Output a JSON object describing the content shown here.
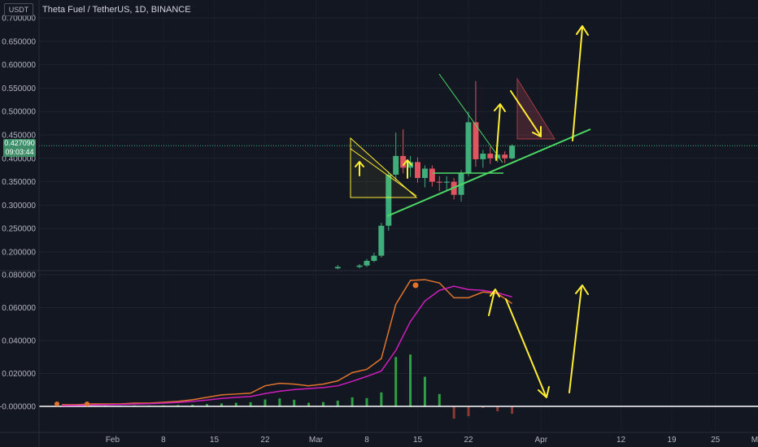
{
  "header": {
    "currency_badge": "USDT",
    "title": "Theta Fuel / TetherUS, 1D, BINANCE"
  },
  "price_tag": {
    "price": "0.427090",
    "countdown": "09:03:44"
  },
  "colors": {
    "background": "#131722",
    "up": "#26a69a",
    "down": "#ef5350",
    "up_candle": "#3fae7a",
    "down_candle": "#e0545f",
    "annotation_yellow": "#ffee33",
    "annotation_green": "#4cd964",
    "macd_line": "#e0742c",
    "signal_line": "#d01dbd",
    "hist_up": "#2ea043",
    "hist_down": "#8b3a36"
  },
  "chart_data": [
    {
      "type": "candlestick",
      "title": "Theta Fuel / TetherUS, 1D, BINANCE",
      "y_axis_labels": [
        "0.700000",
        "0.650000",
        "0.600000",
        "0.550000",
        "0.500000",
        "0.450000",
        "0.400000",
        "0.350000",
        "0.300000",
        "0.250000",
        "0.200000"
      ],
      "ylim": [
        0.16,
        0.705
      ],
      "x_axis_labels": [
        "Feb",
        "8",
        "15",
        "22",
        "Mar",
        "8",
        "15",
        "22",
        "Apr",
        "12",
        "19",
        "25",
        "May"
      ],
      "last_price": 0.42709,
      "candles": [
        {
          "date": "Mar 4",
          "open": 0.165,
          "high": 0.172,
          "low": 0.163,
          "close": 0.168
        },
        {
          "date": "Mar 7",
          "open": 0.168,
          "high": 0.174,
          "low": 0.165,
          "close": 0.171
        },
        {
          "date": "Mar 8",
          "open": 0.171,
          "high": 0.185,
          "low": 0.168,
          "close": 0.181
        },
        {
          "date": "Mar 9",
          "open": 0.181,
          "high": 0.198,
          "low": 0.178,
          "close": 0.192
        },
        {
          "date": "Mar 10",
          "open": 0.192,
          "high": 0.262,
          "low": 0.188,
          "close": 0.256
        },
        {
          "date": "Mar 11",
          "open": 0.256,
          "high": 0.372,
          "low": 0.245,
          "close": 0.365
        },
        {
          "date": "Mar 12",
          "open": 0.365,
          "high": 0.455,
          "low": 0.352,
          "close": 0.405
        },
        {
          "date": "Mar 13",
          "open": 0.405,
          "high": 0.462,
          "low": 0.368,
          "close": 0.38
        },
        {
          "date": "Mar 14",
          "open": 0.38,
          "high": 0.405,
          "low": 0.36,
          "close": 0.392
        },
        {
          "date": "Mar 15",
          "open": 0.392,
          "high": 0.402,
          "low": 0.348,
          "close": 0.358
        },
        {
          "date": "Mar 16",
          "open": 0.358,
          "high": 0.385,
          "low": 0.338,
          "close": 0.378
        },
        {
          "date": "Mar 17",
          "open": 0.378,
          "high": 0.385,
          "low": 0.34,
          "close": 0.35
        },
        {
          "date": "Mar 18",
          "open": 0.35,
          "high": 0.362,
          "low": 0.33,
          "close": 0.348
        },
        {
          "date": "Mar 19",
          "open": 0.348,
          "high": 0.362,
          "low": 0.33,
          "close": 0.35
        },
        {
          "date": "Mar 20",
          "open": 0.35,
          "high": 0.358,
          "low": 0.312,
          "close": 0.322
        },
        {
          "date": "Mar 21",
          "open": 0.322,
          "high": 0.375,
          "low": 0.308,
          "close": 0.368
        },
        {
          "date": "Mar 22",
          "open": 0.368,
          "high": 0.5,
          "low": 0.362,
          "close": 0.477
        },
        {
          "date": "Mar 23",
          "open": 0.477,
          "high": 0.565,
          "low": 0.382,
          "close": 0.398
        },
        {
          "date": "Mar 24",
          "open": 0.398,
          "high": 0.418,
          "low": 0.38,
          "close": 0.41
        },
        {
          "date": "Mar 25",
          "open": 0.41,
          "high": 0.425,
          "low": 0.388,
          "close": 0.4
        },
        {
          "date": "Mar 26",
          "open": 0.4,
          "high": 0.42,
          "low": 0.392,
          "close": 0.408
        },
        {
          "date": "Mar 27",
          "open": 0.408,
          "high": 0.415,
          "low": 0.39,
          "close": 0.4
        },
        {
          "date": "Mar 28",
          "open": 0.4,
          "high": 0.43,
          "low": 0.398,
          "close": 0.427
        }
      ]
    },
    {
      "type": "line",
      "title": "",
      "y_axis_labels": [
        "0.080000",
        "0.060000",
        "0.040000",
        "0.020000",
        "-0.000000"
      ],
      "ylim": [
        -0.0065,
        0.081
      ],
      "x": [
        "Jan 25",
        "Jan 27",
        "Jan 29",
        "Jan 31",
        "Feb 2",
        "Feb 4",
        "Feb 6",
        "Feb 8",
        "Feb 10",
        "Feb 12",
        "Feb 14",
        "Feb 16",
        "Feb 18",
        "Feb 20",
        "Feb 22",
        "Feb 24",
        "Feb 26",
        "Feb 28",
        "Mar 2",
        "Mar 4",
        "Mar 6",
        "Mar 8",
        "Mar 10",
        "Mar 12",
        "Mar 14",
        "Mar 16",
        "Mar 18",
        "Mar 20",
        "Mar 22",
        "Mar 24",
        "Mar 26",
        "Mar 28"
      ],
      "series": [
        {
          "values": [
            0.001,
            0.001,
            0.0015,
            0.0015,
            0.0015,
            0.002,
            0.002,
            0.0025,
            0.003,
            0.004,
            0.0055,
            0.007,
            0.0075,
            0.008,
            0.0125,
            0.014,
            0.0135,
            0.0125,
            0.0135,
            0.0155,
            0.0205,
            0.0225,
            0.029,
            0.062,
            0.0765,
            0.077,
            0.075,
            0.066,
            0.066,
            0.0695,
            0.0685,
            0.0625
          ]
        },
        {
          "values": [
            0.0005,
            0.0006,
            0.0008,
            0.001,
            0.0012,
            0.0014,
            0.0016,
            0.002,
            0.0024,
            0.003,
            0.0038,
            0.0048,
            0.0055,
            0.006,
            0.0078,
            0.0092,
            0.0102,
            0.0108,
            0.0114,
            0.0125,
            0.0152,
            0.0182,
            0.0215,
            0.034,
            0.0515,
            0.064,
            0.0705,
            0.073,
            0.071,
            0.0705,
            0.069,
            0.0665
          ]
        },
        {
          "values": [
            0.0004,
            0.0004,
            0.0006,
            0.0005,
            0.0004,
            0.0006,
            0.0005,
            0.0006,
            0.0008,
            0.001,
            0.0014,
            0.0018,
            0.0022,
            0.0025,
            0.0042,
            0.0048,
            0.004,
            0.0022,
            0.0026,
            0.0035,
            0.0055,
            0.005,
            0.0085,
            0.03,
            0.0315,
            0.018,
            0.0075,
            -0.0075,
            -0.006,
            -0.001,
            -0.003,
            -0.0045
          ]
        }
      ]
    }
  ]
}
